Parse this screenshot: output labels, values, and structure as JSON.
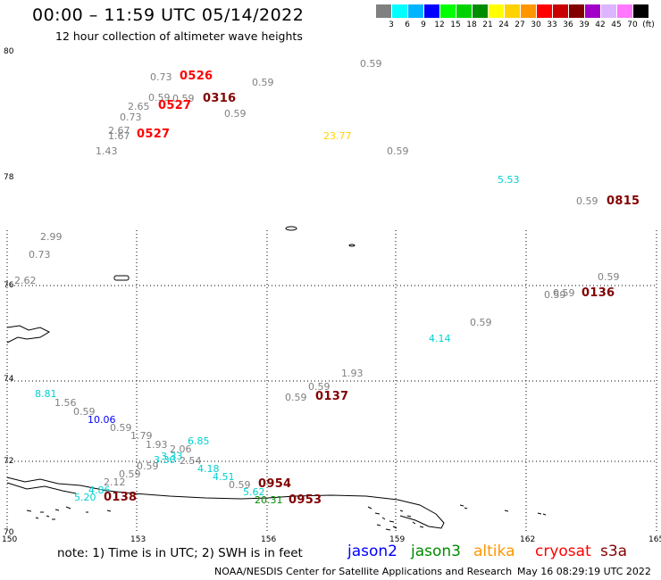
{
  "header": {
    "title": "00:00 – 11:59 UTC 05/14/2022",
    "subtitle": "12 hour collection of altimeter wave heights"
  },
  "legend": {
    "colors": [
      "#808080",
      "#00ffff",
      "#00b4ff",
      "#0000ff",
      "#00ff00",
      "#00d200",
      "#008c00",
      "#ffff00",
      "#ffd200",
      "#ff9600",
      "#ff0000",
      "#c80000",
      "#820000",
      "#a000c8",
      "#dcb4ff",
      "#ff78ff",
      "#000000"
    ],
    "labels": [
      "3",
      "6",
      "9",
      "12",
      "15",
      "18",
      "21",
      "24",
      "27",
      "30",
      "33",
      "36",
      "39",
      "42",
      "45",
      "70",
      "(ft)"
    ]
  },
  "map": {
    "lat_labels": [
      "80",
      "78",
      "76",
      "74",
      "72",
      "70"
    ],
    "lon_labels": [
      "150",
      "153",
      "156",
      "159",
      "162",
      "165"
    ],
    "observations": [
      {
        "t": "0.73",
        "c": "#808080"
      },
      {
        "t": "0526",
        "c": "#ff0000"
      },
      {
        "t": "0.59",
        "c": "#808080"
      },
      {
        "t": "0.59",
        "c": "#808080"
      },
      {
        "t": "0.59",
        "c": "#808080"
      },
      {
        "t": "0.59",
        "c": "#808080"
      },
      {
        "t": "0316",
        "c": "#820000"
      },
      {
        "t": "2.65",
        "c": "#808080"
      },
      {
        "t": "0527",
        "c": "#ff0000"
      },
      {
        "t": "0.73",
        "c": "#808080"
      },
      {
        "t": "0.59",
        "c": "#808080"
      },
      {
        "t": "2.67",
        "c": "#808080"
      },
      {
        "t": "1.67",
        "c": "#808080"
      },
      {
        "t": "0527",
        "c": "#ff0000"
      },
      {
        "t": "23.77",
        "c": "#ffd200"
      },
      {
        "t": "0.59",
        "c": "#808080"
      },
      {
        "t": "1.43",
        "c": "#808080"
      },
      {
        "t": "5.53",
        "c": "#00d0d0"
      },
      {
        "t": "0.59",
        "c": "#808080"
      },
      {
        "t": "0815",
        "c": "#820000"
      },
      {
        "t": "2.99",
        "c": "#808080"
      },
      {
        "t": "0.73",
        "c": "#808080"
      },
      {
        "t": "2.62",
        "c": "#808080"
      },
      {
        "t": "0.59",
        "c": "#808080"
      },
      {
        "t": "0.59",
        "c": "#808080"
      },
      {
        "t": "0.59",
        "c": "#808080"
      },
      {
        "t": "0136",
        "c": "#820000"
      },
      {
        "t": "0.59",
        "c": "#808080"
      },
      {
        "t": "4.14",
        "c": "#00d0d0"
      },
      {
        "t": "1.93",
        "c": "#808080"
      },
      {
        "t": "0.59",
        "c": "#808080"
      },
      {
        "t": "0.59",
        "c": "#808080"
      },
      {
        "t": "0137",
        "c": "#820000"
      },
      {
        "t": "8.81",
        "c": "#00d0d0"
      },
      {
        "t": "1.56",
        "c": "#808080"
      },
      {
        "t": "0.59",
        "c": "#808080"
      },
      {
        "t": "10.06",
        "c": "#0000ff"
      },
      {
        "t": "0.59",
        "c": "#808080"
      },
      {
        "t": "1.79",
        "c": "#808080"
      },
      {
        "t": "1.93",
        "c": "#808080"
      },
      {
        "t": "6.85",
        "c": "#00d0d0"
      },
      {
        "t": "2.06",
        "c": "#808080"
      },
      {
        "t": "3.33",
        "c": "#00d0d0"
      },
      {
        "t": "3.30",
        "c": "#00d0d0"
      },
      {
        "t": "2.54",
        "c": "#808080"
      },
      {
        "t": "0.59",
        "c": "#808080"
      },
      {
        "t": "4.18",
        "c": "#00d0d0"
      },
      {
        "t": "0.59",
        "c": "#808080"
      },
      {
        "t": "4.51",
        "c": "#00d0d0"
      },
      {
        "t": "0.59",
        "c": "#808080"
      },
      {
        "t": "0954",
        "c": "#820000"
      },
      {
        "t": "2.12",
        "c": "#808080"
      },
      {
        "t": "4.86",
        "c": "#00d0d0"
      },
      {
        "t": "5.62",
        "c": "#00d0d0"
      },
      {
        "t": "5.20",
        "c": "#00d0d0"
      },
      {
        "t": "0138",
        "c": "#820000"
      },
      {
        "t": "20.31",
        "c": "#008c00"
      },
      {
        "t": "0953",
        "c": "#820000"
      }
    ]
  },
  "footer": {
    "note": "note:  1) Time is in UTC; 2) SWH is in feet",
    "satellites": [
      {
        "name": "jason2",
        "color": "#0000ff"
      },
      {
        "name": "jason3",
        "color": "#008c00"
      },
      {
        "name": "altika",
        "color": "#ff9600"
      },
      {
        "name": "cryosat",
        "color": "#ff0000"
      },
      {
        "name": "s3a",
        "color": "#820000"
      }
    ],
    "credit": "NOAA/NESDIS Center for Satellite Applications and Research",
    "timestamp": "May 16 08:29:19 UTC 2022"
  }
}
